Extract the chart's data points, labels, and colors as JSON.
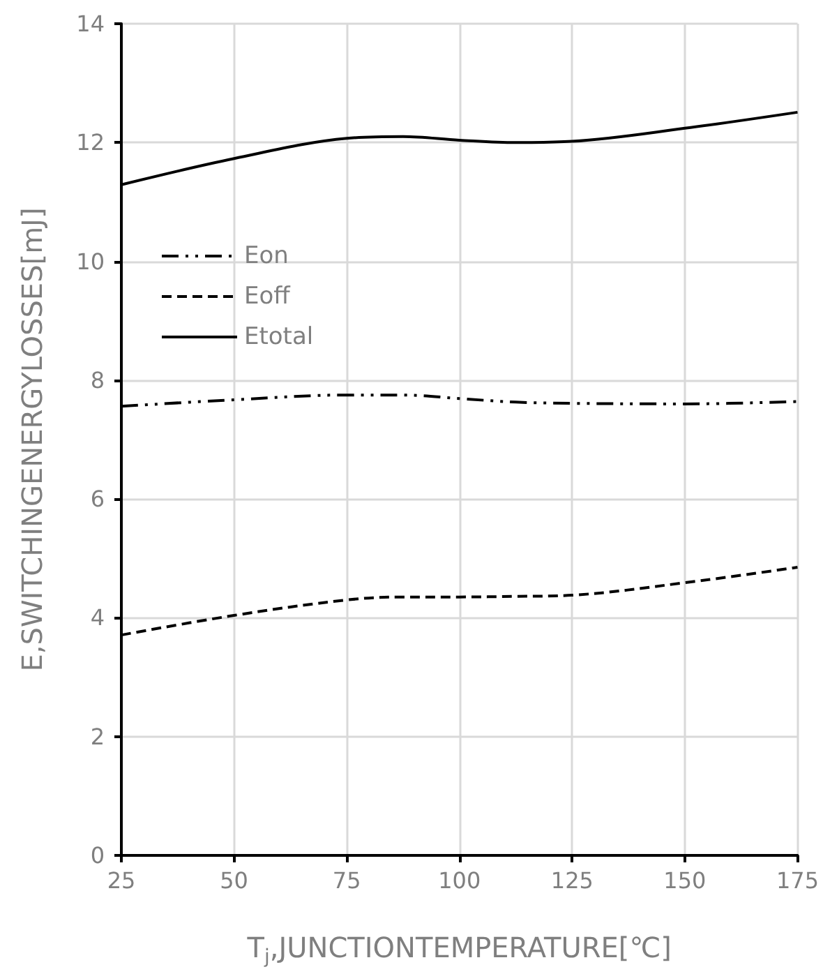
{
  "chart_data": {
    "type": "line",
    "xlabel": "T$_{j}$,JUNCTIONTEMPERATURE[℃]",
    "ylabel": "E,SWITCHINGENERGYLOSSES[mJ]",
    "x": [
      25,
      50,
      75,
      87.5,
      100,
      112.5,
      125,
      150,
      175
    ],
    "series": [
      {
        "name": "Eon",
        "color": "#000000",
        "line_style": "dashdot",
        "values": [
          7.56,
          7.67,
          7.75,
          7.75,
          7.69,
          7.63,
          7.61,
          7.6,
          7.64
        ]
      },
      {
        "name": "Eoff",
        "color": "#000000",
        "line_style": "dashed",
        "values": [
          3.71,
          4.04,
          4.3,
          4.35,
          4.35,
          4.36,
          4.38,
          4.59,
          4.85
        ]
      },
      {
        "name": "Etotal",
        "color": "#000000",
        "line_style": "solid",
        "values": [
          11.29,
          11.73,
          12.07,
          12.1,
          12.04,
          12.0,
          12.02,
          12.24,
          12.51
        ]
      }
    ],
    "xlim": [
      25,
      175
    ],
    "xticks": [
      25,
      50,
      75,
      100,
      125,
      150,
      175
    ],
    "ylim": [
      0,
      14
    ],
    "yticks": [
      0,
      2,
      4,
      6,
      8,
      10,
      12,
      14
    ],
    "grid": true,
    "legend": "top left",
    "marker": "none"
  }
}
